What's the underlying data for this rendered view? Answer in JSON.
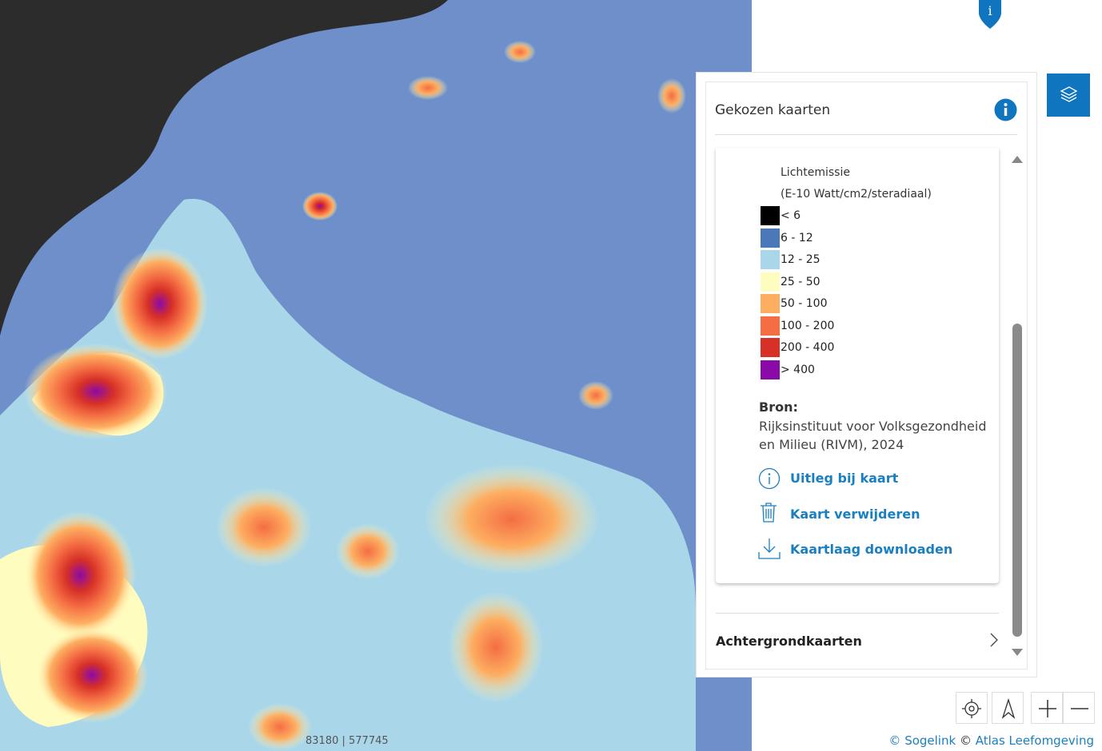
{
  "map": {
    "coordinates": "83180 | 577745"
  },
  "panel": {
    "title": "Gekozen kaarten",
    "legend": {
      "title": "Lichtemissie",
      "unit": "(E-10 Watt/cm2/steradiaal)",
      "items": [
        {
          "label": "< 6",
          "color": "#000000"
        },
        {
          "label": "6 - 12",
          "color": "#4a78b8"
        },
        {
          "label": "12 - 25",
          "color": "#a9d6e9"
        },
        {
          "label": "25 - 50",
          "color": "#fffcbf"
        },
        {
          "label": "50 - 100",
          "color": "#fdae61"
        },
        {
          "label": "100 - 200",
          "color": "#f46d43"
        },
        {
          "label": "200 - 400",
          "color": "#d73027"
        },
        {
          "label": "> 400",
          "color": "#8a0aa8"
        }
      ]
    },
    "source_label": "Bron:",
    "source": "Rijksinstituut voor Volksgezondheid en Milieu (RIVM), 2024",
    "actions": [
      "Uitleg bij kaart",
      "Kaart verwijderen",
      "Kaartlaag downloaden"
    ],
    "background_maps": "Achtergrondkaarten"
  },
  "attribution": {
    "sogelink": "© Sogelink",
    "separator": "©",
    "atlas": "Atlas Leefomgeving"
  }
}
